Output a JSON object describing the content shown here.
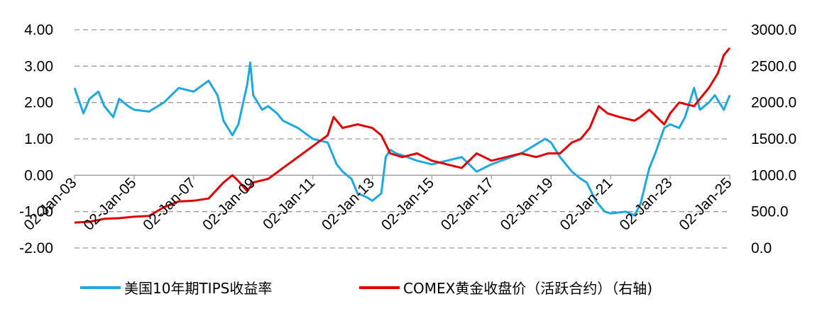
{
  "chart_data": {
    "type": "line",
    "title": "",
    "xlabel": "",
    "ylabel": "",
    "y_left_ticks": [
      "4.00",
      "3.00",
      "2.00",
      "1.00",
      "0.00",
      "-1.00",
      "-2.00"
    ],
    "ylim_left": [
      -2,
      4
    ],
    "y_right_ticks": [
      "3000.0",
      "2500.0",
      "2000.0",
      "1500.0",
      "1000.0",
      "500.0",
      "0.0"
    ],
    "ylim_right": [
      0,
      3000
    ],
    "x_ticks": [
      "02-Jan-03",
      "02-Jan-05",
      "02-Jan-07",
      "02-Jan-09",
      "02-Jan-11",
      "02-Jan-13",
      "02-Jan-15",
      "02-Jan-17",
      "02-Jan-19",
      "02-Jan-21",
      "02-Jan-23",
      "02-Jan-25"
    ],
    "xlim": [
      2003.0,
      2025.0
    ],
    "grid": true,
    "legend_position": "bottom",
    "series": [
      {
        "name": "美国10年期TIPS收益率",
        "axis": "left",
        "color": "#1FA7E0",
        "x": [
          2003.0,
          2003.3,
          2003.5,
          2003.8,
          2004.0,
          2004.3,
          2004.5,
          2004.8,
          2005.0,
          2005.5,
          2006.0,
          2006.5,
          2007.0,
          2007.5,
          2007.8,
          2008.0,
          2008.3,
          2008.5,
          2008.8,
          2008.9,
          2009.0,
          2009.3,
          2009.5,
          2009.8,
          2010.0,
          2010.5,
          2011.0,
          2011.5,
          2011.8,
          2012.0,
          2012.3,
          2012.5,
          2012.8,
          2013.0,
          2013.3,
          2013.45,
          2013.6,
          2013.8,
          2014.0,
          2014.5,
          2015.0,
          2015.5,
          2016.0,
          2016.5,
          2017.0,
          2017.5,
          2018.0,
          2018.5,
          2018.8,
          2019.0,
          2019.3,
          2019.7,
          2020.0,
          2020.2,
          2020.5,
          2020.8,
          2021.0,
          2021.5,
          2021.8,
          2022.0,
          2022.3,
          2022.5,
          2022.8,
          2023.0,
          2023.3,
          2023.5,
          2023.8,
          2024.0,
          2024.3,
          2024.5,
          2024.8,
          2025.0
        ],
        "values": [
          2.4,
          1.7,
          2.1,
          2.3,
          1.9,
          1.6,
          2.1,
          1.9,
          1.8,
          1.75,
          2.0,
          2.4,
          2.3,
          2.6,
          2.2,
          1.5,
          1.1,
          1.4,
          2.5,
          3.1,
          2.2,
          1.8,
          1.9,
          1.7,
          1.5,
          1.3,
          1.0,
          0.9,
          0.3,
          0.1,
          -0.1,
          -0.5,
          -0.6,
          -0.7,
          -0.5,
          0.5,
          0.7,
          0.6,
          0.55,
          0.4,
          0.3,
          0.4,
          0.5,
          0.1,
          0.3,
          0.45,
          0.6,
          0.85,
          1.0,
          0.9,
          0.5,
          0.1,
          -0.1,
          -0.2,
          -0.7,
          -1.0,
          -1.05,
          -1.0,
          -1.1,
          -0.8,
          0.2,
          0.6,
          1.3,
          1.4,
          1.3,
          1.6,
          2.4,
          1.8,
          2.0,
          2.2,
          1.8,
          2.2
        ]
      },
      {
        "name": "COMEX黄金收盘价（活跃合约）（右轴)",
        "axis": "right",
        "color": "#E00000",
        "x": [
          2003.0,
          2003.5,
          2004.0,
          2004.5,
          2005.0,
          2005.5,
          2006.0,
          2006.5,
          2007.0,
          2007.5,
          2008.0,
          2008.3,
          2008.5,
          2008.8,
          2009.0,
          2009.5,
          2010.0,
          2010.5,
          2011.0,
          2011.5,
          2011.7,
          2012.0,
          2012.5,
          2013.0,
          2013.3,
          2013.6,
          2014.0,
          2014.5,
          2015.0,
          2015.5,
          2016.0,
          2016.5,
          2017.0,
          2017.5,
          2018.0,
          2018.5,
          2018.9,
          2019.3,
          2019.7,
          2020.0,
          2020.3,
          2020.6,
          2020.9,
          2021.3,
          2021.8,
          2022.0,
          2022.3,
          2022.8,
          2023.0,
          2023.3,
          2023.8,
          2024.0,
          2024.3,
          2024.6,
          2024.8,
          2025.0
        ],
        "values": [
          350,
          360,
          400,
          410,
          430,
          440,
          560,
          640,
          650,
          680,
          900,
          1000,
          920,
          780,
          900,
          950,
          1100,
          1250,
          1400,
          1550,
          1800,
          1650,
          1700,
          1650,
          1550,
          1300,
          1250,
          1300,
          1200,
          1150,
          1100,
          1300,
          1200,
          1250,
          1300,
          1250,
          1300,
          1300,
          1450,
          1500,
          1650,
          1950,
          1850,
          1800,
          1750,
          1800,
          1900,
          1700,
          1850,
          2000,
          1950,
          2050,
          2200,
          2400,
          2650,
          2750
        ]
      }
    ]
  }
}
